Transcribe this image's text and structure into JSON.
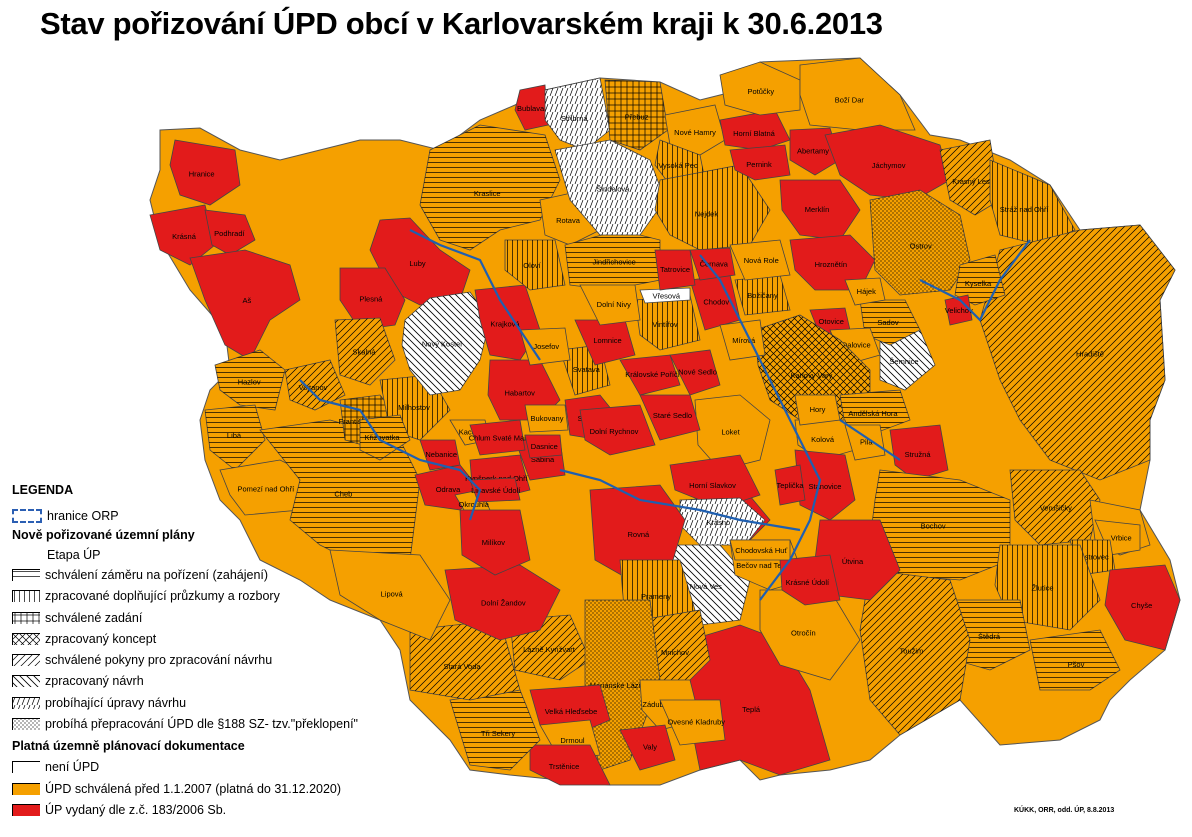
{
  "title": "Stav pořizování ÚPD obcí v Karlovarském kraji k 30.6.2013",
  "credit": "KÚKK, ORR, odd. ÚP, 8.8.2013",
  "colors": {
    "red": "#e21b1b",
    "orange": "#f5a000",
    "white": "#ffffff",
    "border": "#1f5fb0"
  },
  "legend": {
    "title": "LEGENDA",
    "orp_border": "hranice ORP",
    "new_plans_title": "Nově pořizované územní plány",
    "stage_label": "Etapa ÚP",
    "stages": [
      {
        "id": "horiz",
        "label": "schválení záměru na pořízení (zahájení)"
      },
      {
        "id": "vert",
        "label": "zpracované doplňující průzkumy a rozbory"
      },
      {
        "id": "grid",
        "label": "schválené zadání"
      },
      {
        "id": "cross",
        "label": "zpracovaný koncept"
      },
      {
        "id": "diag",
        "label": "schválené pokyny pro zpracování návrhu"
      },
      {
        "id": "back",
        "label": "zpracovaný návrh"
      },
      {
        "id": "vdiag",
        "label": "probíhající úpravy návrhu"
      },
      {
        "id": "dots",
        "label": "probíhá přepracování ÚPD dle §188 SZ- tzv.\"překlopení\""
      }
    ],
    "valid_title": "Platná územně plánovací dokumentace",
    "valid": [
      {
        "id": "none",
        "label": "není ÚPD"
      },
      {
        "id": "orange",
        "label": "ÚPD schválená před 1.1.2007 (platná do 31.12.2020)"
      },
      {
        "id": "red",
        "label": "ÚP vydaný dle z.č. 183/2006 Sb."
      }
    ]
  },
  "municipalities": [
    {
      "name": "Hranice",
      "fill": "red",
      "pattern": ""
    },
    {
      "name": "Krásná",
      "fill": "red",
      "pattern": ""
    },
    {
      "name": "Podhradí",
      "fill": "red",
      "pattern": ""
    },
    {
      "name": "Aš",
      "fill": "red",
      "pattern": ""
    },
    {
      "name": "Luby",
      "fill": "red",
      "pattern": ""
    },
    {
      "name": "Plesná",
      "fill": "red",
      "pattern": ""
    },
    {
      "name": "Skalná",
      "fill": "orange",
      "pattern": "diag"
    },
    {
      "name": "Hazlov",
      "fill": "orange",
      "pattern": "horiz"
    },
    {
      "name": "Vojtanov",
      "fill": "orange",
      "pattern": "diag"
    },
    {
      "name": "Libá",
      "fill": "orange",
      "pattern": "horiz"
    },
    {
      "name": "Pomezí nad Ohří",
      "fill": "orange",
      "pattern": ""
    },
    {
      "name": "Cheb",
      "fill": "orange",
      "pattern": "horiz"
    },
    {
      "name": "Františkovy Lázně",
      "fill": "orange",
      "pattern": "grid"
    },
    {
      "name": "Milhostov",
      "fill": "orange",
      "pattern": "vert"
    },
    {
      "name": "Nový Kostel",
      "fill": "white",
      "pattern": "back"
    },
    {
      "name": "Křižovatka",
      "fill": "orange",
      "pattern": "horiz"
    },
    {
      "name": "Krajková",
      "fill": "red",
      "pattern": ""
    },
    {
      "name": "Habartov",
      "fill": "red",
      "pattern": ""
    },
    {
      "name": "Kaceřov",
      "fill": "orange",
      "pattern": ""
    },
    {
      "name": "Odrava",
      "fill": "red",
      "pattern": ""
    },
    {
      "name": "Nebanice",
      "fill": "red",
      "pattern": ""
    },
    {
      "name": "Okrouhlá",
      "fill": "orange",
      "pattern": ""
    },
    {
      "name": "Sokolov",
      "fill": "red",
      "pattern": ""
    },
    {
      "name": "Bublava",
      "fill": "red",
      "pattern": ""
    },
    {
      "name": "Stříbrná",
      "fill": "white",
      "pattern": "vdiag"
    },
    {
      "name": "Přebuz",
      "fill": "orange",
      "pattern": "grid"
    },
    {
      "name": "Kraslice",
      "fill": "orange",
      "pattern": "horiz"
    },
    {
      "name": "Rotava",
      "fill": "orange",
      "pattern": ""
    },
    {
      "name": "Oloví",
      "fill": "orange",
      "pattern": "vert"
    },
    {
      "name": "Jindřichovice",
      "fill": "orange",
      "pattern": "horiz"
    },
    {
      "name": "Šindelová",
      "fill": "white",
      "pattern": "vdiag"
    },
    {
      "name": "Nové Hamry",
      "fill": "orange",
      "pattern": ""
    },
    {
      "name": "Vysoká Pec",
      "fill": "orange",
      "pattern": "vert"
    },
    {
      "name": "Nejdek",
      "fill": "orange",
      "pattern": "vert"
    },
    {
      "name": "Horní Blatná",
      "fill": "red",
      "pattern": ""
    },
    {
      "name": "Pernink",
      "fill": "red",
      "pattern": ""
    },
    {
      "name": "Potůčky",
      "fill": "orange",
      "pattern": ""
    },
    {
      "name": "Boží Dar",
      "fill": "orange",
      "pattern": ""
    },
    {
      "name": "Abertamy",
      "fill": "red",
      "pattern": ""
    },
    {
      "name": "Jáchymov",
      "fill": "red",
      "pattern": ""
    },
    {
      "name": "Merklín",
      "fill": "red",
      "pattern": ""
    },
    {
      "name": "Hroznětín",
      "fill": "red",
      "pattern": ""
    },
    {
      "name": "Ostrov",
      "fill": "orange",
      "pattern": "dots"
    },
    {
      "name": "Krásný Les",
      "fill": "orange",
      "pattern": "diag"
    },
    {
      "name": "Stráž nad Ohří",
      "fill": "orange",
      "pattern": "vert"
    },
    {
      "name": "Hradiště",
      "fill": "orange",
      "pattern": "diag"
    },
    {
      "name": "Kyselka",
      "fill": "orange",
      "pattern": "horiz"
    },
    {
      "name": "Velichov",
      "fill": "red",
      "pattern": ""
    },
    {
      "name": "Šemnice",
      "fill": "white",
      "pattern": "back"
    },
    {
      "name": "Sadov",
      "fill": "orange",
      "pattern": "horiz"
    },
    {
      "name": "Hájek",
      "fill": "orange",
      "pattern": ""
    },
    {
      "name": "Otovice",
      "fill": "red",
      "pattern": ""
    },
    {
      "name": "Dalovice",
      "fill": "orange",
      "pattern": ""
    },
    {
      "name": "Karlovy Vary",
      "fill": "orange",
      "pattern": "cross"
    },
    {
      "name": "Andělská Hora",
      "fill": "orange",
      "pattern": "horiz"
    },
    {
      "name": "Kolová",
      "fill": "orange",
      "pattern": ""
    },
    {
      "name": "Pila",
      "fill": "orange",
      "pattern": ""
    },
    {
      "name": "Stružná",
      "fill": "red",
      "pattern": ""
    },
    {
      "name": "Bochov",
      "fill": "orange",
      "pattern": "horiz"
    },
    {
      "name": "Verušičky",
      "fill": "orange",
      "pattern": "diag"
    },
    {
      "name": "Valeč",
      "fill": "orange",
      "pattern": ""
    },
    {
      "name": "Vrbice",
      "fill": "orange",
      "pattern": ""
    },
    {
      "name": "Ostrovec",
      "fill": "orange",
      "pattern": "vert"
    },
    {
      "name": "Žlutice",
      "fill": "orange",
      "pattern": "vert"
    },
    {
      "name": "Chyše",
      "fill": "red",
      "pattern": ""
    },
    {
      "name": "Štědrá",
      "fill": "orange",
      "pattern": "horiz"
    },
    {
      "name": "Pšov",
      "fill": "orange",
      "pattern": "horiz"
    },
    {
      "name": "Toužim",
      "fill": "orange",
      "pattern": "diag"
    },
    {
      "name": "Útvina",
      "fill": "red",
      "pattern": ""
    },
    {
      "name": "Teplá",
      "fill": "red",
      "pattern": ""
    },
    {
      "name": "Otročín",
      "fill": "orange",
      "pattern": ""
    },
    {
      "name": "Stanovice",
      "fill": "red",
      "pattern": ""
    },
    {
      "name": "Teplička",
      "fill": "red",
      "pattern": ""
    },
    {
      "name": "Březová",
      "fill": "red",
      "pattern": ""
    },
    {
      "name": "Loket",
      "fill": "orange",
      "pattern": ""
    },
    {
      "name": "Horní Slavkov",
      "fill": "red",
      "pattern": ""
    },
    {
      "name": "Krásno",
      "fill": "white",
      "pattern": "vdiag"
    },
    {
      "name": "Nová Ves",
      "fill": "white",
      "pattern": "back"
    },
    {
      "name": "Bečov nad Teplou",
      "fill": "orange",
      "pattern": ""
    },
    {
      "name": "Krásné Údolí",
      "fill": "red",
      "pattern": ""
    },
    {
      "name": "Rovná",
      "fill": "red",
      "pattern": ""
    },
    {
      "name": "Prameny",
      "fill": "orange",
      "pattern": "vert"
    },
    {
      "name": "Mnichov",
      "fill": "orange",
      "pattern": "diag"
    },
    {
      "name": "Lázně Kynžvart",
      "fill": "orange",
      "pattern": "diag"
    },
    {
      "name": "Mariánské Lázně",
      "fill": "orange",
      "pattern": "dots"
    },
    {
      "name": "Zádub-Závišín",
      "fill": "orange",
      "pattern": ""
    },
    {
      "name": "Ovesné Kladruby",
      "fill": "orange",
      "pattern": ""
    },
    {
      "name": "Valy",
      "fill": "red",
      "pattern": ""
    },
    {
      "name": "Velká Hleďsebe",
      "fill": "red",
      "pattern": ""
    },
    {
      "name": "Drmoul",
      "fill": "orange",
      "pattern": ""
    },
    {
      "name": "Trstěnice",
      "fill": "red",
      "pattern": ""
    },
    {
      "name": "Tři Sekery",
      "fill": "orange",
      "pattern": "horiz"
    },
    {
      "name": "Stará Voda",
      "fill": "orange",
      "pattern": "diag"
    },
    {
      "name": "Lipová",
      "fill": "orange",
      "pattern": ""
    },
    {
      "name": "Dolní Žandov",
      "fill": "red",
      "pattern": ""
    },
    {
      "name": "Milíkov",
      "fill": "red",
      "pattern": ""
    },
    {
      "name": "Šabina",
      "fill": "red",
      "pattern": ""
    },
    {
      "name": "Svatava",
      "fill": "orange",
      "pattern": "vert"
    },
    {
      "name": "Josefov",
      "fill": "orange",
      "pattern": ""
    },
    {
      "name": "Lomnice",
      "fill": "red",
      "pattern": ""
    },
    {
      "name": "Královské Poříčí",
      "fill": "red",
      "pattern": ""
    },
    {
      "name": "Nové Sedlo",
      "fill": "red",
      "pattern": ""
    },
    {
      "name": "Staré Sedlo",
      "fill": "red",
      "pattern": ""
    },
    {
      "name": "Dolní Rychnov",
      "fill": "red",
      "pattern": ""
    },
    {
      "name": "Vintířov",
      "fill": "orange",
      "pattern": "vert"
    },
    {
      "name": "Dolní Nivy",
      "fill": "orange",
      "pattern": ""
    },
    {
      "name": "Vřesová",
      "fill": "white",
      "pattern": ""
    },
    {
      "name": "Chodov",
      "fill": "red",
      "pattern": ""
    },
    {
      "name": "Mírová",
      "fill": "orange",
      "pattern": ""
    },
    {
      "name": "Božičany",
      "fill": "orange",
      "pattern": "vert"
    },
    {
      "name": "Nová Role",
      "fill": "orange",
      "pattern": ""
    },
    {
      "name": "Černava",
      "fill": "red",
      "pattern": ""
    },
    {
      "name": "Tatrovice",
      "fill": "red",
      "pattern": ""
    },
    {
      "name": "Chodovská Huť",
      "fill": "orange",
      "pattern": ""
    },
    {
      "name": "Kynšperk nad Ohří",
      "fill": "red",
      "pattern": ""
    },
    {
      "name": "Libavské Údolí",
      "fill": "red",
      "pattern": ""
    },
    {
      "name": "Chlum Svaté Maří",
      "fill": "red",
      "pattern": ""
    },
    {
      "name": "Dasnice",
      "fill": "red",
      "pattern": ""
    },
    {
      "name": "Bukovany",
      "fill": "orange",
      "pattern": ""
    },
    {
      "name": "Hory",
      "fill": "orange",
      "pattern": ""
    }
  ]
}
